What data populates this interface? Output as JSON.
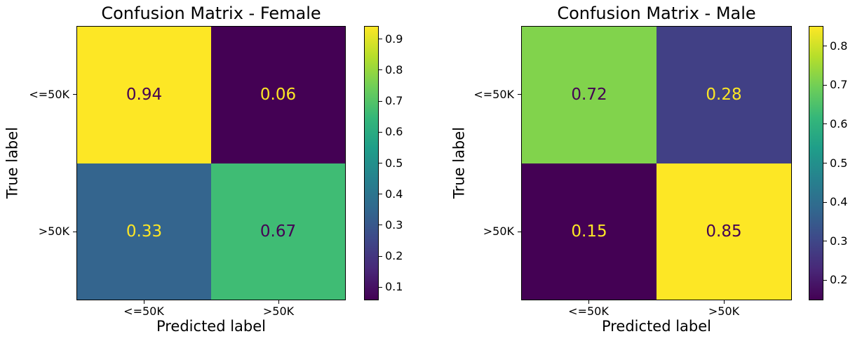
{
  "figure": {
    "background": "#ffffff",
    "text_color": "#000000",
    "colormap": "viridis",
    "colormap_min_color": "#440154",
    "colormap_max_color": "#fde725",
    "colormap_stops": [
      "#440154",
      "#482878",
      "#3e4989",
      "#31688e",
      "#26828e",
      "#1f9e89",
      "#35b779",
      "#6ece58",
      "#b5de2b",
      "#fde725"
    ]
  },
  "chart_data": [
    {
      "type": "heatmap",
      "title": "Confusion Matrix - Female",
      "xlabel": "Predicted label",
      "ylabel": "True label",
      "x_categories": [
        "<=50K",
        ">50K"
      ],
      "y_categories": [
        "<=50K",
        ">50K"
      ],
      "values": [
        [
          0.94,
          0.06
        ],
        [
          0.33,
          0.67
        ]
      ],
      "cell_labels": [
        [
          "0.94",
          "0.06"
        ],
        [
          "0.33",
          "0.67"
        ]
      ],
      "cell_colors": [
        [
          "#fde725",
          "#440154"
        ],
        [
          "#34658e",
          "#3fbc74"
        ]
      ],
      "cell_text_colors": [
        [
          "#440154",
          "#fde725"
        ],
        [
          "#fde725",
          "#440154"
        ]
      ],
      "colorbar": {
        "vmin": 0.06,
        "vmax": 0.94,
        "ticks": [
          {
            "value": 0.9,
            "label": "0.9"
          },
          {
            "value": 0.8,
            "label": "0.8"
          },
          {
            "value": 0.7,
            "label": "0.7"
          },
          {
            "value": 0.6,
            "label": "0.6"
          },
          {
            "value": 0.5,
            "label": "0.5"
          },
          {
            "value": 0.4,
            "label": "0.4"
          },
          {
            "value": 0.3,
            "label": "0.3"
          },
          {
            "value": 0.2,
            "label": "0.2"
          },
          {
            "value": 0.1,
            "label": "0.1"
          }
        ]
      },
      "grid": false,
      "legend": false
    },
    {
      "type": "heatmap",
      "title": "Confusion Matrix - Male",
      "xlabel": "Predicted label",
      "ylabel": "True label",
      "x_categories": [
        "<=50K",
        ">50K"
      ],
      "y_categories": [
        "<=50K",
        ">50K"
      ],
      "values": [
        [
          0.72,
          0.28
        ],
        [
          0.15,
          0.85
        ]
      ],
      "cell_labels": [
        [
          "0.72",
          "0.28"
        ],
        [
          "0.15",
          "0.85"
        ]
      ],
      "cell_colors": [
        [
          "#81d34c",
          "#414085"
        ],
        [
          "#440154",
          "#fde725"
        ]
      ],
      "cell_text_colors": [
        [
          "#440154",
          "#fde725"
        ],
        [
          "#fde725",
          "#440154"
        ]
      ],
      "colorbar": {
        "vmin": 0.15,
        "vmax": 0.85,
        "ticks": [
          {
            "value": 0.8,
            "label": "0.8"
          },
          {
            "value": 0.7,
            "label": "0.7"
          },
          {
            "value": 0.6,
            "label": "0.6"
          },
          {
            "value": 0.5,
            "label": "0.5"
          },
          {
            "value": 0.4,
            "label": "0.4"
          },
          {
            "value": 0.3,
            "label": "0.3"
          },
          {
            "value": 0.2,
            "label": "0.2"
          }
        ]
      },
      "grid": false,
      "legend": false
    }
  ]
}
